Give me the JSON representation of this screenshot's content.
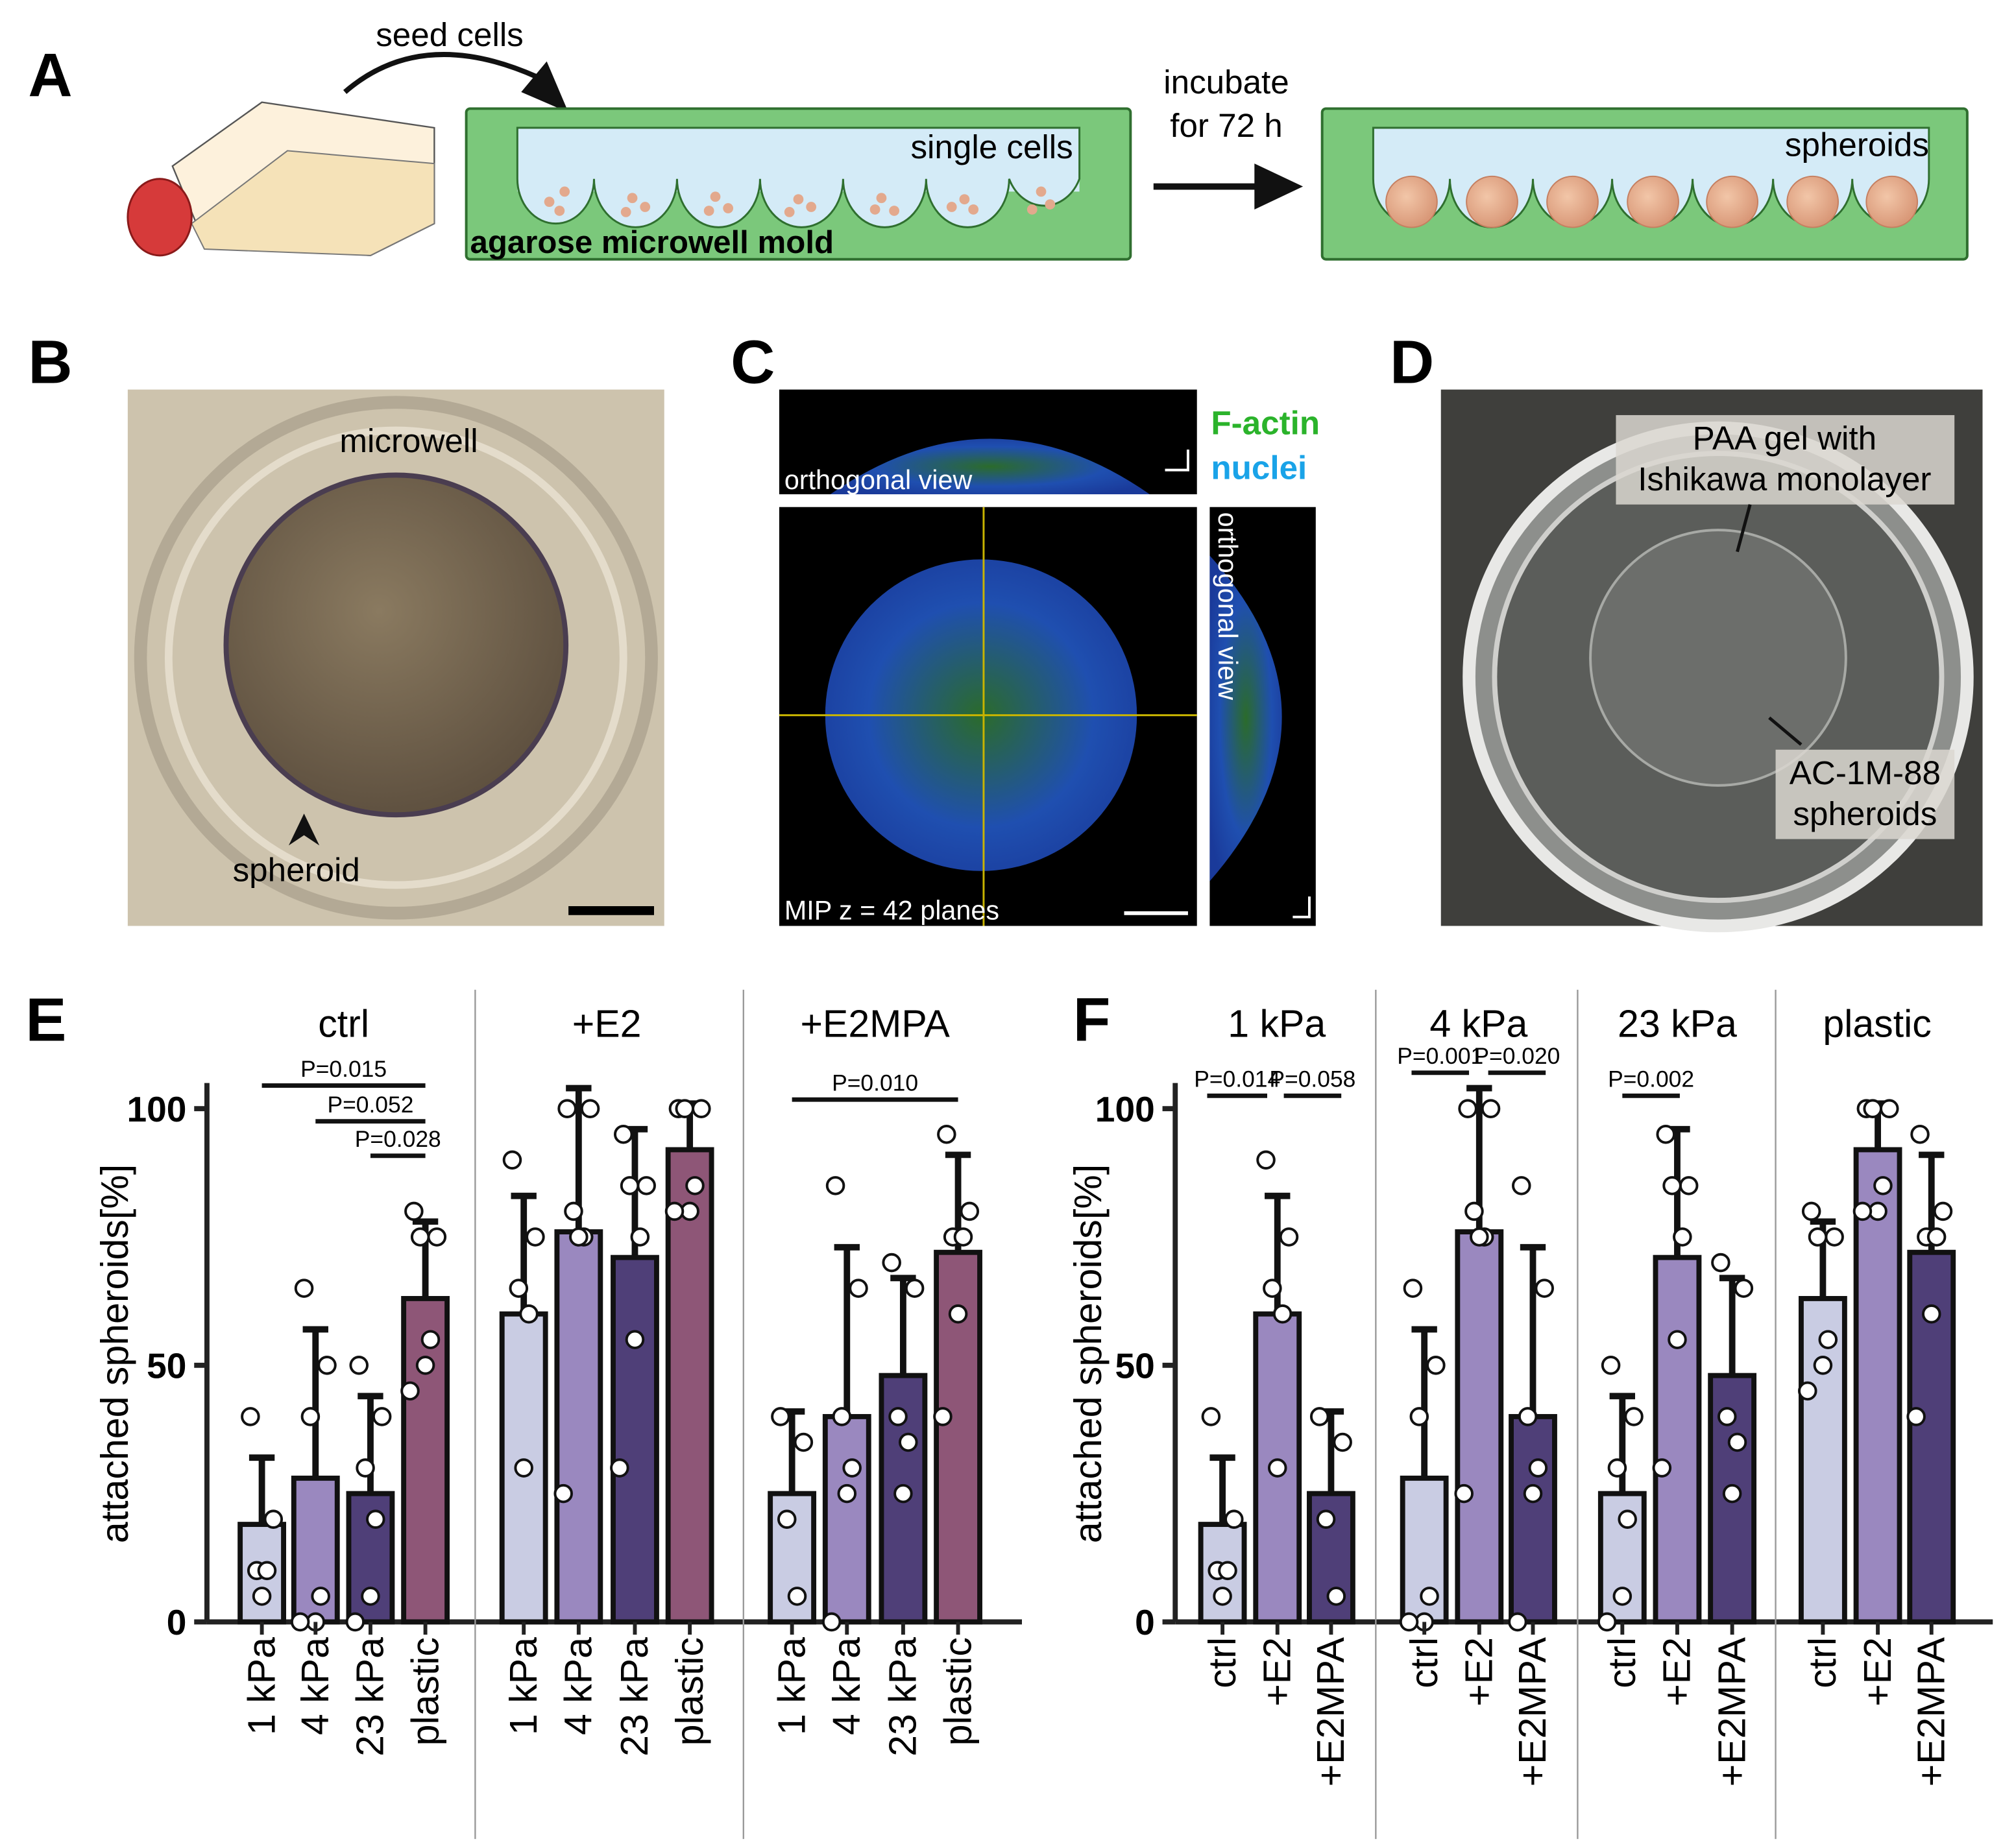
{
  "panel_a": {
    "label": "A",
    "seed": "seed cells",
    "single": "single cells",
    "mold": "agarose microwell mold",
    "incubate": "incubate",
    "hours": "for 72 h",
    "spheroids": "spheroids"
  },
  "panel_b": {
    "label": "B",
    "microwell": "microwell",
    "spheroid": "spheroid"
  },
  "panel_c": {
    "label": "C",
    "ortho_top": "orthogonal view",
    "factin": "F-actin",
    "nuclei": "nuclei",
    "ortho_side": "orthogonal view",
    "mip": "MIP z = 42 planes"
  },
  "panel_d": {
    "label": "D",
    "gel1": "PAA gel with",
    "gel2": "Ishikawa monolayer",
    "sph1": "AC-1M-88",
    "sph2": "spheroids"
  },
  "chart_data": [
    {
      "type": "bar",
      "panel_label": "E",
      "ylabel": "attached spheroids[%]",
      "ylim": [
        0,
        105
      ],
      "yticks": [
        0,
        50,
        100
      ],
      "annotations": [
        "P=0.015",
        "P=0.052",
        "P=0.028",
        "P=0.010"
      ],
      "groups": [
        {
          "name": "ctrl",
          "categories": [
            "1 kPa",
            "4 kPa",
            "23 kPa",
            "plastic"
          ],
          "colors": [
            "#c9cce3",
            "#9a88bf",
            "#4f3f78",
            "#8e5677"
          ],
          "values": [
            19,
            28,
            25,
            63
          ],
          "errors": [
            13,
            29,
            19,
            15
          ],
          "points": [
            [
              40,
              20,
              10,
              10,
              5
            ],
            [
              65,
              50,
              40,
              5,
              0,
              0
            ],
            [
              50,
              40,
              30,
              20,
              5,
              0
            ],
            [
              80,
              75,
              75,
              55,
              50,
              45
            ]
          ]
        },
        {
          "name": "+E2",
          "categories": [
            "1 kPa",
            "4 kPa",
            "23 kPa",
            "plastic"
          ],
          "colors": [
            "#c9cce3",
            "#9a88bf",
            "#4f3f78",
            "#8e5677"
          ],
          "values": [
            60,
            76,
            71,
            92
          ],
          "errors": [
            23,
            28,
            25,
            9
          ],
          "points": [
            [
              90,
              75,
              65,
              60,
              30
            ],
            [
              100,
              100,
              80,
              75,
              75,
              25
            ],
            [
              95,
              85,
              85,
              75,
              55,
              30
            ],
            [
              100,
              100,
              100,
              85,
              80,
              80
            ]
          ]
        },
        {
          "name": "+E2MPA",
          "categories": [
            "1 kPa",
            "4 kPa",
            "23 kPa",
            "plastic"
          ],
          "colors": [
            "#c9cce3",
            "#9a88bf",
            "#4f3f78",
            "#8e5677"
          ],
          "values": [
            25,
            40,
            48,
            72
          ],
          "errors": [
            16,
            33,
            19,
            19
          ],
          "points": [
            [
              40,
              35,
              20,
              5
            ],
            [
              85,
              65,
              40,
              30,
              25,
              0
            ],
            [
              70,
              65,
              40,
              35,
              25
            ],
            [
              95,
              80,
              75,
              75,
              60,
              40
            ]
          ]
        }
      ]
    },
    {
      "type": "bar",
      "panel_label": "F",
      "ylabel": "attached spheroids[%]",
      "ylim": [
        0,
        105
      ],
      "yticks": [
        0,
        50,
        100
      ],
      "annotations": [
        "P=0.014",
        "P=0.058",
        "P=0.001",
        "P=0.020",
        "P=0.002"
      ],
      "groups": [
        {
          "name": "1 kPa",
          "categories": [
            "ctrl",
            "+E2",
            "+E2MPA"
          ],
          "colors": [
            "#c9cce3",
            "#9a88bf",
            "#4f3f78"
          ],
          "values": [
            19,
            60,
            25
          ],
          "errors": [
            13,
            23,
            16
          ],
          "points": [
            [
              40,
              20,
              10,
              10,
              5
            ],
            [
              90,
              75,
              65,
              60,
              30
            ],
            [
              40,
              35,
              20,
              5
            ]
          ]
        },
        {
          "name": "4 kPa",
          "categories": [
            "ctrl",
            "+E2",
            "+E2MPA"
          ],
          "colors": [
            "#c9cce3",
            "#9a88bf",
            "#4f3f78"
          ],
          "values": [
            28,
            76,
            40
          ],
          "errors": [
            29,
            28,
            33
          ],
          "points": [
            [
              65,
              50,
              40,
              5,
              0,
              0
            ],
            [
              100,
              100,
              80,
              75,
              75,
              25
            ],
            [
              85,
              65,
              40,
              30,
              25,
              0
            ]
          ]
        },
        {
          "name": "23 kPa",
          "categories": [
            "ctrl",
            "+E2",
            "+E2MPA"
          ],
          "colors": [
            "#c9cce3",
            "#9a88bf",
            "#4f3f78"
          ],
          "values": [
            25,
            71,
            48
          ],
          "errors": [
            19,
            25,
            19
          ],
          "points": [
            [
              50,
              40,
              30,
              20,
              5,
              0
            ],
            [
              95,
              85,
              85,
              75,
              55,
              30
            ],
            [
              70,
              65,
              40,
              35,
              25
            ]
          ]
        },
        {
          "name": "plastic",
          "categories": [
            "ctrl",
            "+E2",
            "+E2MPA"
          ],
          "colors": [
            "#c9cce3",
            "#9a88bf",
            "#4f3f78"
          ],
          "values": [
            63,
            92,
            72
          ],
          "errors": [
            15,
            9,
            19
          ],
          "points": [
            [
              80,
              75,
              75,
              55,
              50,
              45
            ],
            [
              100,
              100,
              100,
              85,
              80,
              80
            ],
            [
              95,
              80,
              75,
              75,
              60,
              40
            ]
          ]
        }
      ]
    }
  ]
}
